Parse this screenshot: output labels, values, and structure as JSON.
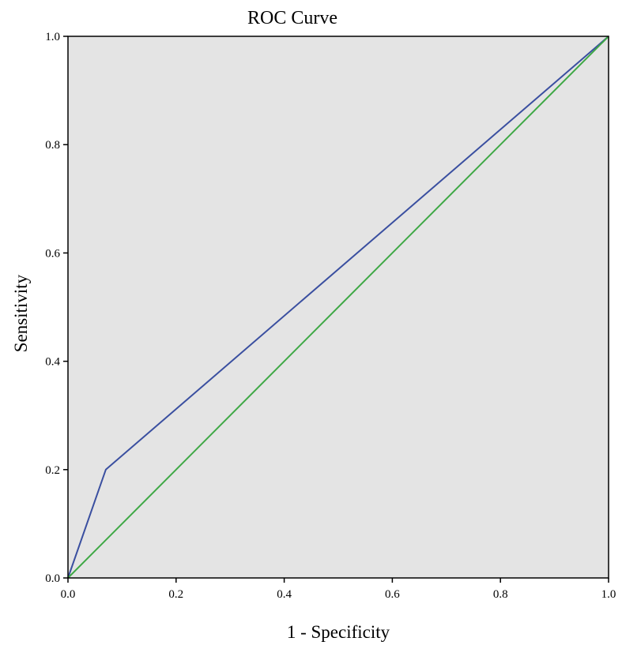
{
  "chart_data": {
    "type": "line",
    "title": "ROC Curve",
    "xlabel": "1 - Specificity",
    "ylabel": "Sensitivity",
    "xlim": [
      0,
      1
    ],
    "ylim": [
      0,
      1
    ],
    "x_ticks": [
      "0.0",
      "0.2",
      "0.4",
      "0.6",
      "0.8",
      "1.0"
    ],
    "y_ticks": [
      "0.0",
      "0.2",
      "0.4",
      "0.6",
      "0.8",
      "1.0"
    ],
    "grid": false,
    "legend": "none",
    "background_color": "#e4e4e4",
    "series": [
      {
        "color": "#3a4fa0",
        "points": [
          [
            0.0,
            0.0
          ],
          [
            0.07,
            0.2
          ],
          [
            1.0,
            1.0
          ]
        ]
      },
      {
        "color": "#3ea845",
        "points": [
          [
            0.0,
            0.0
          ],
          [
            1.0,
            1.0
          ]
        ]
      }
    ]
  }
}
